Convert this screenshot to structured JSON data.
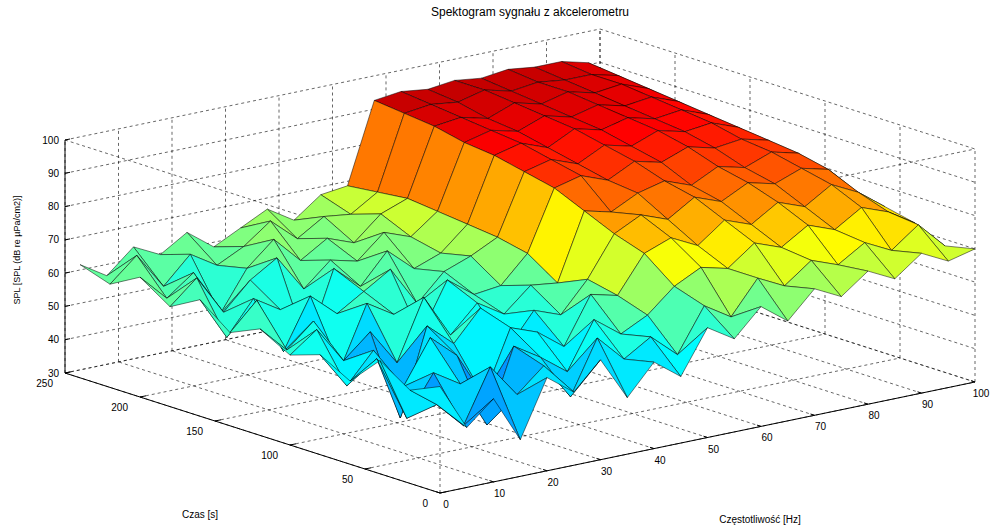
{
  "chart_data": {
    "type": "surface",
    "title": "Spektogram sygnału z akcelerometru",
    "xlabel": "Częstotliwość [Hz]",
    "ylabel": "Czas [s]",
    "zlabel": "SPL [SPL (dB re µPa/cm2)]",
    "x": [
      0,
      5,
      10,
      15,
      20,
      25,
      30,
      35,
      40,
      45,
      50,
      55,
      60,
      65,
      70,
      75,
      80,
      85,
      90,
      95,
      100
    ],
    "y": [
      0,
      20,
      40,
      60,
      80,
      100,
      120,
      140,
      160,
      180,
      200,
      220,
      240
    ],
    "z": [
      [
        62,
        48,
        55,
        41,
        58,
        52,
        60,
        47,
        56,
        50,
        63,
        58,
        66,
        60,
        68,
        64,
        70,
        66,
        72,
        68,
        70
      ],
      [
        58,
        52,
        44,
        60,
        50,
        57,
        46,
        62,
        54,
        59,
        52,
        65,
        60,
        70,
        66,
        72,
        69,
        74,
        70,
        76,
        68
      ],
      [
        64,
        45,
        57,
        52,
        38,
        60,
        55,
        49,
        63,
        57,
        61,
        68,
        72,
        70,
        76,
        73,
        78,
        75,
        80,
        77,
        72
      ],
      [
        55,
        60,
        50,
        63,
        56,
        42,
        61,
        58,
        52,
        66,
        64,
        75,
        78,
        74,
        80,
        77,
        82,
        79,
        84,
        80,
        74
      ],
      [
        60,
        49,
        58,
        36,
        62,
        55,
        64,
        50,
        60,
        57,
        66,
        78,
        82,
        79,
        84,
        81,
        85,
        83,
        86,
        84,
        76
      ],
      [
        57,
        63,
        52,
        59,
        48,
        66,
        53,
        61,
        56,
        63,
        62,
        82,
        80,
        84,
        86,
        83,
        87,
        85,
        88,
        86,
        78
      ],
      [
        62,
        54,
        61,
        45,
        63,
        58,
        50,
        65,
        59,
        60,
        68,
        86,
        88,
        85,
        89,
        87,
        90,
        88,
        89,
        87,
        80
      ],
      [
        58,
        66,
        49,
        64,
        57,
        62,
        67,
        55,
        63,
        66,
        70,
        88,
        90,
        87,
        91,
        89,
        92,
        90,
        91,
        88,
        82
      ],
      [
        65,
        52,
        62,
        57,
        44,
        66,
        59,
        68,
        61,
        64,
        71,
        90,
        92,
        89,
        93,
        91,
        93,
        91,
        92,
        89,
        83
      ],
      [
        60,
        67,
        55,
        63,
        68,
        57,
        64,
        62,
        69,
        66,
        72,
        91,
        93,
        91,
        94,
        92,
        94,
        92,
        93,
        90,
        84
      ],
      [
        66,
        58,
        64,
        50,
        62,
        69,
        61,
        66,
        63,
        70,
        73,
        93,
        94,
        92,
        95,
        93,
        95,
        93,
        94,
        91,
        85
      ],
      [
        61,
        68,
        57,
        65,
        60,
        64,
        70,
        63,
        68,
        67,
        72,
        94,
        95,
        94,
        96,
        94,
        95,
        94,
        94,
        92,
        86
      ],
      [
        64,
        59,
        66,
        62,
        67,
        61,
        65,
        69,
        64,
        70,
        71,
        95,
        96,
        95,
        96,
        95,
        96,
        95,
        95,
        93,
        72
      ]
    ],
    "xlim": [
      0,
      100
    ],
    "xticks": [
      0,
      10,
      20,
      30,
      40,
      50,
      60,
      70,
      80,
      90,
      100
    ],
    "ylim": [
      0,
      250
    ],
    "yticks": [
      0,
      50,
      100,
      150,
      200,
      250
    ],
    "zlim": [
      30,
      100
    ],
    "zticks": [
      30,
      40,
      50,
      60,
      70,
      80,
      90,
      100
    ],
    "grid": true
  }
}
